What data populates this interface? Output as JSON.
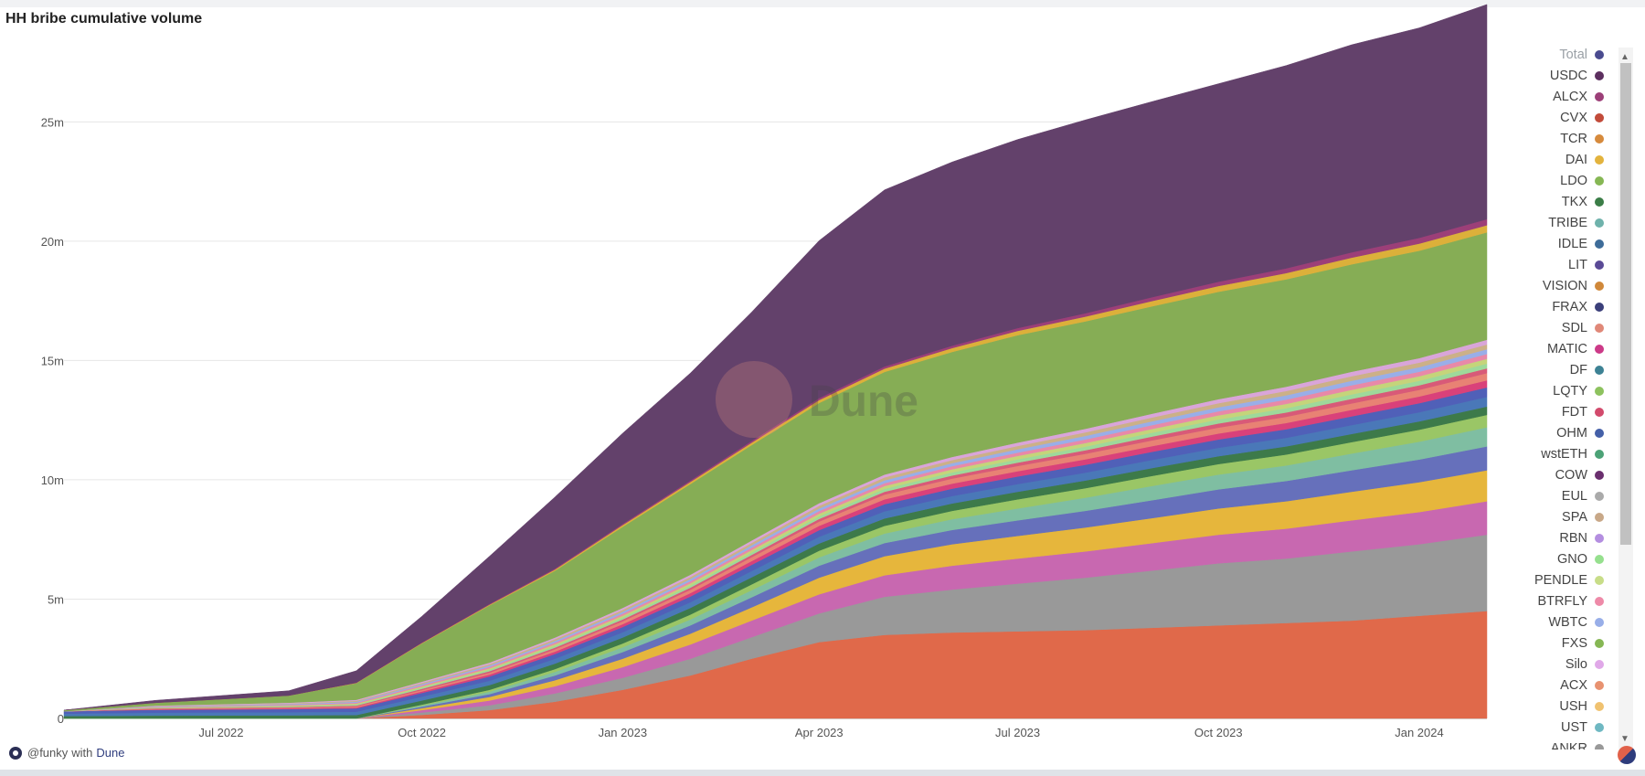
{
  "title": "HH bribe cumulative volume",
  "watermark": "Dune",
  "footer": {
    "user": "@funky",
    "with": "with",
    "brand": "Dune"
  },
  "chart_data": {
    "type": "area",
    "stacked": true,
    "title": "HH bribe cumulative volume",
    "x_start": "2022-04-20",
    "x_end": "2024-02-01",
    "x_ticks": [
      "Jul 2022",
      "Oct 2022",
      "Jan 2023",
      "Apr 2023",
      "Jul 2023",
      "Oct 2023",
      "Jan 2024"
    ],
    "x_tick_dates": [
      "2022-07-01",
      "2022-10-01",
      "2023-01-01",
      "2023-04-01",
      "2023-07-01",
      "2023-10-01",
      "2024-01-01"
    ],
    "y_ticks": [
      "0",
      "5m",
      "10m",
      "15m",
      "20m",
      "25m"
    ],
    "y_tick_values": [
      0,
      5000000,
      10000000,
      15000000,
      20000000,
      25000000
    ],
    "ylim": [
      0,
      28000000
    ],
    "grid": true,
    "legend_position": "right",
    "dates": [
      "2022-04-20",
      "2022-06-01",
      "2022-08-01",
      "2022-09-01",
      "2022-10-01",
      "2022-11-01",
      "2022-12-01",
      "2023-01-01",
      "2023-02-01",
      "2023-03-01",
      "2023-04-01",
      "2023-05-01",
      "2023-06-01",
      "2023-07-01",
      "2023-08-01",
      "2023-09-01",
      "2023-10-01",
      "2023-11-01",
      "2023-12-01",
      "2024-01-01",
      "2024-02-01"
    ],
    "series": [
      {
        "name": "UST",
        "color": "#6fb8c2",
        "values": [
          0.0,
          0.0,
          0.0,
          0.0,
          0.0,
          0.0,
          0.0,
          0.0,
          0.0,
          0.0,
          0.0,
          0.0,
          0.0,
          0.0,
          0.0,
          0.0,
          0.0,
          0.0,
          0.0,
          0.0,
          0.0
        ]
      },
      {
        "name": "CVX",
        "color": "#e0694a",
        "values": [
          0.0,
          0.0,
          0.0,
          0.0,
          0.15,
          0.35,
          0.7,
          1.2,
          1.8,
          2.5,
          3.2,
          3.5,
          3.6,
          3.65,
          3.7,
          3.8,
          3.9,
          4.0,
          4.1,
          4.3,
          4.5
        ]
      },
      {
        "name": "EUL",
        "color": "#999999",
        "values": [
          0.0,
          0.0,
          0.0,
          0.0,
          0.1,
          0.2,
          0.35,
          0.5,
          0.7,
          0.9,
          1.2,
          1.6,
          1.8,
          2.0,
          2.2,
          2.4,
          2.6,
          2.7,
          2.9,
          3.0,
          3.2
        ]
      },
      {
        "name": "USDC",
        "color": "#c868b0",
        "values": [
          0.0,
          0.0,
          0.0,
          0.0,
          0.1,
          0.2,
          0.3,
          0.45,
          0.6,
          0.7,
          0.8,
          0.9,
          1.0,
          1.05,
          1.1,
          1.15,
          1.2,
          1.25,
          1.3,
          1.35,
          1.4
        ]
      },
      {
        "name": "DAI",
        "color": "#e6b63c",
        "values": [
          0.0,
          0.0,
          0.0,
          0.0,
          0.08,
          0.15,
          0.25,
          0.35,
          0.45,
          0.55,
          0.7,
          0.8,
          0.9,
          0.95,
          1.0,
          1.05,
          1.1,
          1.15,
          1.2,
          1.25,
          1.3
        ]
      },
      {
        "name": "FRAX",
        "color": "#6670bb",
        "values": [
          0.0,
          0.0,
          0.0,
          0.0,
          0.06,
          0.12,
          0.2,
          0.28,
          0.35,
          0.42,
          0.5,
          0.55,
          0.6,
          0.65,
          0.7,
          0.75,
          0.8,
          0.85,
          0.9,
          0.95,
          1.0
        ]
      },
      {
        "name": "TRIBE",
        "color": "#7fbea2",
        "values": [
          0.0,
          0.0,
          0.0,
          0.0,
          0.05,
          0.1,
          0.15,
          0.2,
          0.25,
          0.3,
          0.35,
          0.4,
          0.45,
          0.5,
          0.55,
          0.6,
          0.62,
          0.65,
          0.7,
          0.75,
          0.8
        ]
      },
      {
        "name": "LQTY",
        "color": "#9ac666",
        "values": [
          0.0,
          0.0,
          0.0,
          0.0,
          0.04,
          0.08,
          0.12,
          0.16,
          0.2,
          0.24,
          0.28,
          0.32,
          0.35,
          0.38,
          0.4,
          0.42,
          0.44,
          0.46,
          0.48,
          0.5,
          0.52
        ]
      },
      {
        "name": "TKX",
        "color": "#3d7a4a",
        "values": [
          0.1,
          0.12,
          0.13,
          0.14,
          0.17,
          0.2,
          0.23,
          0.25,
          0.28,
          0.3,
          0.3,
          0.31,
          0.31,
          0.32,
          0.32,
          0.33,
          0.33,
          0.34,
          0.34,
          0.35,
          0.35
        ]
      },
      {
        "name": "IDLE",
        "color": "#4a78b8",
        "values": [
          0.1,
          0.12,
          0.13,
          0.14,
          0.16,
          0.18,
          0.2,
          0.22,
          0.24,
          0.26,
          0.28,
          0.3,
          0.31,
          0.32,
          0.33,
          0.34,
          0.35,
          0.36,
          0.37,
          0.38,
          0.4
        ]
      },
      {
        "name": "OHM",
        "color": "#5060b8",
        "values": [
          0.1,
          0.12,
          0.13,
          0.14,
          0.16,
          0.18,
          0.2,
          0.22,
          0.24,
          0.26,
          0.28,
          0.3,
          0.31,
          0.32,
          0.33,
          0.34,
          0.35,
          0.36,
          0.37,
          0.38,
          0.4
        ]
      },
      {
        "name": "MATIC",
        "color": "#d9417a",
        "values": [
          0.0,
          0.02,
          0.03,
          0.04,
          0.06,
          0.08,
          0.1,
          0.12,
          0.14,
          0.16,
          0.18,
          0.2,
          0.21,
          0.22,
          0.23,
          0.24,
          0.25,
          0.26,
          0.27,
          0.28,
          0.3
        ]
      },
      {
        "name": "SDL",
        "color": "#e88274",
        "values": [
          0.0,
          0.02,
          0.03,
          0.04,
          0.06,
          0.08,
          0.1,
          0.12,
          0.14,
          0.16,
          0.18,
          0.2,
          0.21,
          0.22,
          0.23,
          0.24,
          0.25,
          0.26,
          0.27,
          0.28,
          0.3
        ]
      },
      {
        "name": "FDT",
        "color": "#d85a78",
        "values": [
          0.0,
          0.02,
          0.03,
          0.04,
          0.05,
          0.06,
          0.07,
          0.08,
          0.09,
          0.1,
          0.11,
          0.12,
          0.13,
          0.14,
          0.15,
          0.16,
          0.17,
          0.18,
          0.19,
          0.19,
          0.2
        ]
      },
      {
        "name": "GNO",
        "color": "#9ed99a",
        "values": [
          0.0,
          0.02,
          0.03,
          0.04,
          0.05,
          0.06,
          0.07,
          0.08,
          0.09,
          0.1,
          0.11,
          0.12,
          0.13,
          0.14,
          0.15,
          0.16,
          0.17,
          0.18,
          0.19,
          0.19,
          0.2
        ]
      },
      {
        "name": "PENDLE",
        "color": "#c5d47a",
        "values": [
          0.0,
          0.02,
          0.03,
          0.04,
          0.05,
          0.06,
          0.07,
          0.08,
          0.09,
          0.1,
          0.11,
          0.12,
          0.13,
          0.14,
          0.15,
          0.16,
          0.17,
          0.18,
          0.19,
          0.19,
          0.2
        ]
      },
      {
        "name": "BTRFLY",
        "color": "#e889a8",
        "values": [
          0.0,
          0.02,
          0.03,
          0.04,
          0.05,
          0.06,
          0.07,
          0.08,
          0.09,
          0.1,
          0.11,
          0.12,
          0.13,
          0.14,
          0.15,
          0.16,
          0.17,
          0.18,
          0.19,
          0.19,
          0.2
        ]
      },
      {
        "name": "WBTC",
        "color": "#99aee8",
        "values": [
          0.0,
          0.02,
          0.03,
          0.04,
          0.05,
          0.06,
          0.07,
          0.08,
          0.09,
          0.1,
          0.11,
          0.12,
          0.13,
          0.14,
          0.15,
          0.16,
          0.17,
          0.18,
          0.19,
          0.19,
          0.2
        ]
      },
      {
        "name": "SPA",
        "color": "#ccb088",
        "values": [
          0.0,
          0.02,
          0.03,
          0.04,
          0.05,
          0.06,
          0.07,
          0.08,
          0.09,
          0.1,
          0.11,
          0.12,
          0.13,
          0.14,
          0.15,
          0.16,
          0.17,
          0.18,
          0.19,
          0.19,
          0.2
        ]
      },
      {
        "name": "Silo",
        "color": "#d9a5d9",
        "values": [
          0.0,
          0.02,
          0.03,
          0.04,
          0.05,
          0.06,
          0.07,
          0.08,
          0.09,
          0.1,
          0.11,
          0.12,
          0.13,
          0.14,
          0.15,
          0.16,
          0.17,
          0.18,
          0.19,
          0.19,
          0.2
        ]
      },
      {
        "name": "LDO",
        "color": "#86ad55",
        "values": [
          0.05,
          0.12,
          0.3,
          0.7,
          1.6,
          2.4,
          2.8,
          3.4,
          3.8,
          4.0,
          4.2,
          4.3,
          4.4,
          4.5,
          4.5,
          4.5,
          4.5,
          4.5,
          4.5,
          4.5,
          4.5
        ]
      },
      {
        "name": "VISION",
        "color": "#dcb03a",
        "values": [
          0.0,
          0.0,
          0.0,
          0.01,
          0.02,
          0.03,
          0.05,
          0.07,
          0.09,
          0.1,
          0.12,
          0.14,
          0.16,
          0.18,
          0.2,
          0.22,
          0.24,
          0.26,
          0.28,
          0.3,
          0.3
        ]
      },
      {
        "name": "ALCX",
        "color": "#9c3f78",
        "values": [
          0.0,
          0.0,
          0.0,
          0.01,
          0.02,
          0.03,
          0.04,
          0.05,
          0.06,
          0.07,
          0.08,
          0.09,
          0.1,
          0.12,
          0.14,
          0.16,
          0.18,
          0.2,
          0.22,
          0.24,
          0.25
        ]
      },
      {
        "name": "COW",
        "color": "#63416b",
        "values": [
          0.0,
          0.1,
          0.2,
          0.5,
          1.1,
          2.0,
          3.0,
          3.8,
          4.5,
          5.4,
          6.6,
          7.4,
          7.7,
          7.9,
          8.1,
          8.2,
          8.3,
          8.5,
          8.7,
          8.8,
          9.0
        ]
      }
    ],
    "legend": [
      {
        "name": "Total",
        "color": "#4a4b8f",
        "faded": true
      },
      {
        "name": "USDC",
        "color": "#5c2f5f"
      },
      {
        "name": "ALCX",
        "color": "#9c3f78"
      },
      {
        "name": "CVX",
        "color": "#c24b3a"
      },
      {
        "name": "TCR",
        "color": "#d68a3c"
      },
      {
        "name": "DAI",
        "color": "#e3b33d"
      },
      {
        "name": "LDO",
        "color": "#86b754"
      },
      {
        "name": "TKX",
        "color": "#3b7d47"
      },
      {
        "name": "TRIBE",
        "color": "#6fb2ab"
      },
      {
        "name": "IDLE",
        "color": "#3e6c99"
      },
      {
        "name": "LIT",
        "color": "#5a4a96"
      },
      {
        "name": "VISION",
        "color": "#d0883a"
      },
      {
        "name": "FRAX",
        "color": "#3b3f7a"
      },
      {
        "name": "SDL",
        "color": "#e08878"
      },
      {
        "name": "MATIC",
        "color": "#cc3a88"
      },
      {
        "name": "DF",
        "color": "#3d8294"
      },
      {
        "name": "LQTY",
        "color": "#8dc25e"
      },
      {
        "name": "FDT",
        "color": "#d24a6c"
      },
      {
        "name": "OHM",
        "color": "#4460a8"
      },
      {
        "name": "wstETH",
        "color": "#4ca276"
      },
      {
        "name": "COW",
        "color": "#6a2f6e"
      },
      {
        "name": "EUL",
        "color": "#aaaaaa"
      },
      {
        "name": "SPA",
        "color": "#c8a888"
      },
      {
        "name": "RBN",
        "color": "#b48ee0"
      },
      {
        "name": "GNO",
        "color": "#96e08e"
      },
      {
        "name": "PENDLE",
        "color": "#c8dd88"
      },
      {
        "name": "BTRFLY",
        "color": "#ee8aa8"
      },
      {
        "name": "WBTC",
        "color": "#98aee8"
      },
      {
        "name": "FXS",
        "color": "#86b754"
      },
      {
        "name": "Silo",
        "color": "#e0a8e8"
      },
      {
        "name": "ACX",
        "color": "#e89270"
      },
      {
        "name": "USH",
        "color": "#f0c270"
      },
      {
        "name": "UST",
        "color": "#6fb8c2"
      },
      {
        "name": "ANKR",
        "color": "#999999"
      }
    ]
  }
}
